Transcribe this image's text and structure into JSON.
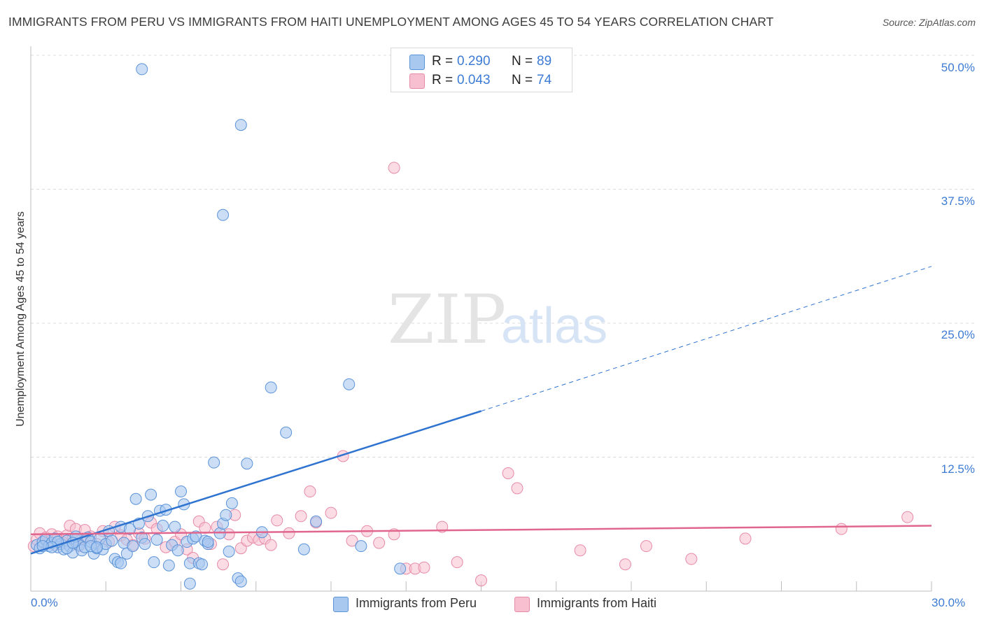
{
  "header": {
    "title": "IMMIGRANTS FROM PERU VS IMMIGRANTS FROM HAITI UNEMPLOYMENT AMONG AGES 45 TO 54 YEARS CORRELATION CHART",
    "source": "Source: ZipAtlas.com"
  },
  "watermark": {
    "zip": "ZIP",
    "atlas": "atlas"
  },
  "colors": {
    "peru_fill": "#a9c8f0",
    "peru_stroke": "#5b93d8",
    "peru_line": "#2f73d0",
    "haiti_fill": "#f7bfd0",
    "haiti_stroke": "#e68aa8",
    "haiti_line": "#e0668e",
    "tick_text": "#3d7bd4",
    "grid": "#dcdcdc"
  },
  "legend_top": {
    "rows": [
      {
        "r_label": "R =",
        "r_value": "0.290",
        "n_label": "N =",
        "n_value": "89"
      },
      {
        "r_label": "R =",
        "r_value": "0.043",
        "n_label": "N =",
        "n_value": "74"
      }
    ]
  },
  "legend_bottom": [
    "Immigrants from Peru",
    "Immigrants from Haiti"
  ],
  "chart_data": {
    "type": "scatter",
    "title": "IMMIGRANTS FROM PERU VS IMMIGRANTS FROM HAITI UNEMPLOYMENT AMONG AGES 45 TO 54 YEARS CORRELATION CHART",
    "xlabel": "",
    "ylabel": "Unemployment Among Ages 45 to 54 years",
    "xlim": [
      0,
      30
    ],
    "ylim": [
      0,
      50
    ],
    "x_tick_labels": [
      "0.0%",
      "30.0%"
    ],
    "y_ticks": [
      12.5,
      25.0,
      37.5,
      50.0
    ],
    "y_tick_labels": [
      "12.5%",
      "25.0%",
      "37.5%",
      "50.0%"
    ],
    "series": [
      {
        "name": "Immigrants from Peru",
        "R": 0.29,
        "N": 89,
        "trend": {
          "x0": 0,
          "y0": 3.5,
          "x1": 15.0,
          "y1": 16.8,
          "x_dash_end": 30.0,
          "y_dash_end": 30.3
        },
        "points": [
          [
            0.2,
            4.3
          ],
          [
            0.3,
            4.0
          ],
          [
            0.4,
            4.6
          ],
          [
            0.5,
            4.8
          ],
          [
            0.6,
            4.2
          ],
          [
            0.7,
            4.5
          ],
          [
            0.8,
            4.9
          ],
          [
            0.9,
            4.1
          ],
          [
            1.0,
            4.4
          ],
          [
            1.1,
            3.9
          ],
          [
            1.2,
            4.7
          ],
          [
            1.3,
            4.2
          ],
          [
            1.4,
            3.6
          ],
          [
            1.5,
            4.8
          ],
          [
            1.6,
            4.3
          ],
          [
            1.7,
            3.8
          ],
          [
            1.8,
            4.1
          ],
          [
            1.9,
            5.0
          ],
          [
            2.0,
            4.6
          ],
          [
            2.1,
            3.5
          ],
          [
            2.2,
            4.0
          ],
          [
            2.3,
            4.9
          ],
          [
            2.4,
            3.9
          ],
          [
            2.5,
            4.4
          ],
          [
            2.0,
            4.2
          ],
          [
            1.5,
            5.1
          ],
          [
            0.9,
            4.6
          ],
          [
            0.7,
            4.1
          ],
          [
            0.4,
            4.2
          ],
          [
            1.2,
            4.0
          ],
          [
            2.6,
            5.6
          ],
          [
            2.7,
            4.7
          ],
          [
            2.8,
            3.0
          ],
          [
            2.9,
            2.7
          ],
          [
            3.0,
            6.0
          ],
          [
            3.1,
            4.5
          ],
          [
            3.0,
            2.6
          ],
          [
            3.2,
            3.5
          ],
          [
            3.3,
            5.8
          ],
          [
            3.4,
            4.2
          ],
          [
            3.5,
            8.6
          ],
          [
            3.6,
            6.3
          ],
          [
            3.7,
            5.0
          ],
          [
            3.8,
            4.4
          ],
          [
            3.9,
            7.0
          ],
          [
            4.0,
            9.0
          ],
          [
            4.1,
            2.7
          ],
          [
            4.2,
            4.8
          ],
          [
            4.3,
            7.5
          ],
          [
            4.4,
            6.1
          ],
          [
            4.5,
            7.6
          ],
          [
            4.6,
            2.4
          ],
          [
            4.7,
            4.3
          ],
          [
            4.8,
            6.0
          ],
          [
            4.9,
            3.8
          ],
          [
            5.0,
            9.3
          ],
          [
            5.1,
            8.1
          ],
          [
            5.2,
            4.6
          ],
          [
            5.3,
            2.6
          ],
          [
            5.4,
            4.9
          ],
          [
            5.5,
            5.1
          ],
          [
            5.6,
            2.6
          ],
          [
            5.7,
            2.5
          ],
          [
            5.8,
            4.7
          ],
          [
            5.9,
            4.4
          ],
          [
            6.1,
            12.0
          ],
          [
            6.3,
            5.4
          ],
          [
            6.4,
            6.3
          ],
          [
            6.5,
            7.1
          ],
          [
            6.6,
            3.7
          ],
          [
            6.7,
            8.2
          ],
          [
            6.9,
            1.2
          ],
          [
            7.0,
            0.9
          ],
          [
            7.2,
            11.9
          ],
          [
            7.7,
            5.5
          ],
          [
            8.0,
            19.0
          ],
          [
            8.5,
            14.8
          ],
          [
            9.1,
            3.9
          ],
          [
            9.5,
            6.5
          ],
          [
            10.6,
            19.3
          ],
          [
            11.0,
            4.2
          ],
          [
            12.3,
            2.1
          ],
          [
            3.7,
            48.7
          ],
          [
            7.0,
            43.5
          ],
          [
            6.4,
            35.1
          ],
          [
            5.3,
            0.7
          ],
          [
            5.9,
            4.6
          ],
          [
            2.2,
            4.1
          ],
          [
            1.4,
            4.5
          ]
        ]
      },
      {
        "name": "Immigrants from Haiti",
        "R": 0.043,
        "N": 74,
        "trend": {
          "x0": 0,
          "y0": 5.3,
          "x1": 30.0,
          "y1": 6.1
        },
        "points": [
          [
            0.1,
            4.2
          ],
          [
            0.2,
            4.8
          ],
          [
            0.3,
            5.4
          ],
          [
            0.4,
            4.5
          ],
          [
            0.5,
            5.0
          ],
          [
            0.6,
            4.6
          ],
          [
            0.7,
            5.3
          ],
          [
            0.8,
            4.3
          ],
          [
            0.9,
            5.1
          ],
          [
            1.0,
            4.7
          ],
          [
            1.1,
            4.5
          ],
          [
            1.2,
            5.2
          ],
          [
            1.3,
            6.1
          ],
          [
            1.4,
            4.9
          ],
          [
            1.5,
            5.8
          ],
          [
            1.6,
            4.2
          ],
          [
            1.7,
            4.9
          ],
          [
            1.8,
            5.7
          ],
          [
            2.0,
            5.1
          ],
          [
            2.2,
            4.4
          ],
          [
            2.4,
            5.6
          ],
          [
            2.6,
            4.6
          ],
          [
            2.8,
            6.0
          ],
          [
            3.0,
            5.2
          ],
          [
            3.2,
            4.8
          ],
          [
            3.4,
            4.3
          ],
          [
            3.6,
            5.4
          ],
          [
            3.8,
            4.9
          ],
          [
            4.0,
            6.4
          ],
          [
            4.2,
            5.8
          ],
          [
            4.5,
            4.1
          ],
          [
            4.8,
            4.6
          ],
          [
            5.0,
            5.3
          ],
          [
            5.2,
            3.9
          ],
          [
            5.4,
            3.1
          ],
          [
            5.6,
            6.5
          ],
          [
            5.8,
            5.9
          ],
          [
            6.0,
            4.4
          ],
          [
            6.2,
            6.0
          ],
          [
            6.4,
            2.5
          ],
          [
            6.6,
            5.3
          ],
          [
            6.8,
            7.1
          ],
          [
            7.0,
            4.0
          ],
          [
            7.2,
            4.7
          ],
          [
            7.4,
            5.0
          ],
          [
            7.6,
            4.8
          ],
          [
            7.8,
            4.9
          ],
          [
            8.0,
            4.3
          ],
          [
            8.2,
            6.6
          ],
          [
            8.6,
            5.4
          ],
          [
            9.0,
            7.0
          ],
          [
            9.3,
            9.3
          ],
          [
            9.5,
            6.4
          ],
          [
            10.0,
            7.3
          ],
          [
            10.4,
            12.6
          ],
          [
            10.7,
            4.7
          ],
          [
            11.2,
            5.6
          ],
          [
            11.6,
            4.5
          ],
          [
            12.1,
            5.3
          ],
          [
            12.5,
            2.1
          ],
          [
            12.8,
            2.1
          ],
          [
            13.1,
            2.2
          ],
          [
            13.7,
            6.0
          ],
          [
            14.2,
            2.7
          ],
          [
            15.0,
            1.0
          ],
          [
            15.9,
            11.0
          ],
          [
            16.2,
            9.6
          ],
          [
            18.3,
            3.8
          ],
          [
            19.8,
            2.5
          ],
          [
            20.5,
            4.2
          ],
          [
            22.0,
            3.0
          ],
          [
            23.8,
            4.9
          ],
          [
            27.0,
            5.8
          ],
          [
            29.2,
            6.9
          ]
        ],
        "outliers": [
          [
            12.1,
            39.5
          ]
        ]
      }
    ]
  }
}
